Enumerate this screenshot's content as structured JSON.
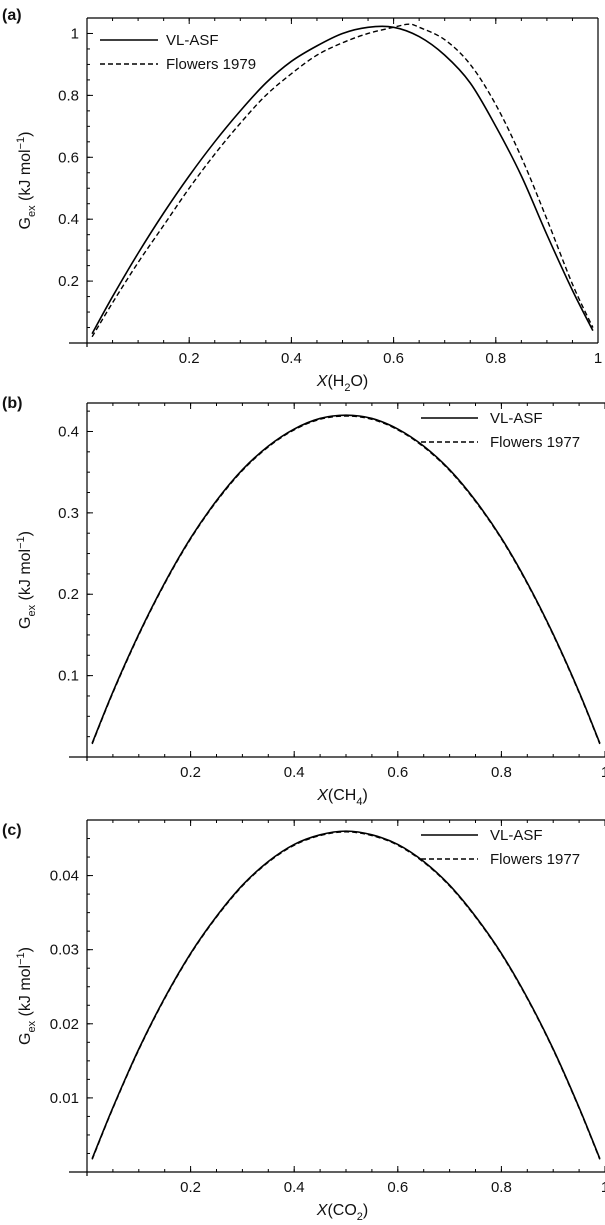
{
  "chart_data": [
    {
      "type": "line",
      "panel_label": "(a)",
      "xlabel": {
        "italic": "X",
        "main": "(H",
        "sub": "2",
        "tail": "O)"
      },
      "ylabel": {
        "main": "G",
        "sub": "ex",
        "mid": " (kJ mol",
        "sup": "−1",
        "tail": ")"
      },
      "xlim": [
        0,
        1
      ],
      "ylim": [
        0,
        1.05
      ],
      "xticks": [
        0.2,
        0.4,
        0.6,
        0.8,
        1
      ],
      "xtick_labels": [
        "0.2",
        "0.4",
        "0.6",
        "0.8",
        "1"
      ],
      "yticks": [
        0.2,
        0.4,
        0.6,
        0.8,
        1
      ],
      "ytick_labels": [
        "0.2",
        "0.4",
        "0.6",
        "0.8",
        "1"
      ],
      "legend_position": "top-left",
      "series": [
        {
          "name": "VL-ASF",
          "style": "solid",
          "x": [
            0.01,
            0.05,
            0.1,
            0.15,
            0.2,
            0.25,
            0.3,
            0.35,
            0.4,
            0.45,
            0.5,
            0.55,
            0.6,
            0.65,
            0.7,
            0.75,
            0.8,
            0.85,
            0.9,
            0.95,
            0.99
          ],
          "y": [
            0.03,
            0.15,
            0.29,
            0.42,
            0.54,
            0.65,
            0.75,
            0.84,
            0.91,
            0.96,
            1.0,
            1.02,
            1.02,
            0.99,
            0.93,
            0.84,
            0.7,
            0.54,
            0.35,
            0.17,
            0.04
          ]
        },
        {
          "name": "Flowers 1979",
          "style": "dashed",
          "x": [
            0.01,
            0.05,
            0.1,
            0.15,
            0.2,
            0.25,
            0.3,
            0.35,
            0.4,
            0.45,
            0.5,
            0.55,
            0.6,
            0.63,
            0.65,
            0.7,
            0.75,
            0.8,
            0.85,
            0.9,
            0.95,
            0.99
          ],
          "y": [
            0.02,
            0.13,
            0.26,
            0.38,
            0.5,
            0.61,
            0.71,
            0.8,
            0.87,
            0.93,
            0.97,
            1.0,
            1.02,
            1.03,
            1.02,
            0.98,
            0.9,
            0.77,
            0.6,
            0.4,
            0.19,
            0.05
          ]
        }
      ]
    },
    {
      "type": "line",
      "panel_label": "(b)",
      "xlabel": {
        "italic": "X",
        "main": "(CH",
        "sub": "4",
        "tail": ")"
      },
      "ylabel": {
        "main": "G",
        "sub": "ex",
        "mid": " (kJ mol",
        "sup": "−1",
        "tail": ")"
      },
      "xlim": [
        0,
        1
      ],
      "ylim": [
        0,
        0.435
      ],
      "xticks": [
        0.2,
        0.4,
        0.6,
        0.8,
        1
      ],
      "xtick_labels": [
        "0.2",
        "0.4",
        "0.6",
        "0.8",
        "1"
      ],
      "yticks": [
        0.1,
        0.2,
        0.3,
        0.4
      ],
      "ytick_labels": [
        "0.1",
        "0.2",
        "0.3",
        "0.4"
      ],
      "legend_position": "top-right",
      "series": [
        {
          "name": "VL-ASF",
          "style": "solid",
          "x": [
            0.01,
            0.05,
            0.1,
            0.15,
            0.2,
            0.25,
            0.3,
            0.35,
            0.4,
            0.45,
            0.5,
            0.55,
            0.6,
            0.65,
            0.7,
            0.75,
            0.8,
            0.85,
            0.9,
            0.95,
            0.99
          ],
          "y": [
            0.017,
            0.08,
            0.151,
            0.214,
            0.269,
            0.315,
            0.353,
            0.382,
            0.403,
            0.416,
            0.42,
            0.416,
            0.403,
            0.382,
            0.353,
            0.315,
            0.269,
            0.214,
            0.151,
            0.08,
            0.017
          ]
        },
        {
          "name": "Flowers 1977",
          "style": "dashed",
          "x": [
            0.01,
            0.05,
            0.1,
            0.15,
            0.2,
            0.25,
            0.3,
            0.35,
            0.4,
            0.45,
            0.5,
            0.55,
            0.6,
            0.65,
            0.7,
            0.75,
            0.8,
            0.85,
            0.9,
            0.95,
            0.99
          ],
          "y": [
            0.016,
            0.079,
            0.15,
            0.213,
            0.268,
            0.314,
            0.352,
            0.381,
            0.402,
            0.415,
            0.419,
            0.415,
            0.402,
            0.381,
            0.352,
            0.314,
            0.268,
            0.213,
            0.15,
            0.079,
            0.016
          ]
        }
      ]
    },
    {
      "type": "line",
      "panel_label": "(c)",
      "xlabel": {
        "italic": "X",
        "main": "(CO",
        "sub": "2",
        "tail": ")"
      },
      "ylabel": {
        "main": "G",
        "sub": "ex",
        "mid": " (kJ mol",
        "sup": "−1",
        "tail": ")"
      },
      "xlim": [
        0,
        1
      ],
      "ylim": [
        0,
        0.0475
      ],
      "xticks": [
        0.2,
        0.4,
        0.6,
        0.8,
        1
      ],
      "xtick_labels": [
        "0.2",
        "0.4",
        "0.6",
        "0.8",
        "1"
      ],
      "yticks": [
        0.01,
        0.02,
        0.03,
        0.04
      ],
      "ytick_labels": [
        "0.01",
        "0.02",
        "0.03",
        "0.04"
      ],
      "legend_position": "top-right",
      "series": [
        {
          "name": "VL-ASF",
          "style": "solid",
          "x": [
            0.01,
            0.05,
            0.1,
            0.15,
            0.2,
            0.25,
            0.3,
            0.35,
            0.4,
            0.45,
            0.5,
            0.55,
            0.6,
            0.65,
            0.7,
            0.75,
            0.8,
            0.85,
            0.9,
            0.95,
            0.99
          ],
          "y": [
            0.0018,
            0.0087,
            0.0166,
            0.0235,
            0.0295,
            0.0345,
            0.0387,
            0.0419,
            0.0442,
            0.0455,
            0.046,
            0.0455,
            0.0442,
            0.0419,
            0.0387,
            0.0345,
            0.0295,
            0.0235,
            0.0166,
            0.0087,
            0.0018
          ]
        },
        {
          "name": "Flowers 1977",
          "style": "dashed",
          "x": [
            0.01,
            0.05,
            0.1,
            0.15,
            0.2,
            0.25,
            0.3,
            0.35,
            0.4,
            0.45,
            0.5,
            0.55,
            0.6,
            0.65,
            0.7,
            0.75,
            0.8,
            0.85,
            0.9,
            0.95,
            0.99
          ],
          "y": [
            0.0017,
            0.0086,
            0.0165,
            0.0234,
            0.0294,
            0.0344,
            0.0386,
            0.0418,
            0.0441,
            0.0454,
            0.0459,
            0.0454,
            0.0441,
            0.0418,
            0.0386,
            0.0344,
            0.0294,
            0.0234,
            0.0165,
            0.0086,
            0.0017
          ]
        }
      ]
    }
  ]
}
